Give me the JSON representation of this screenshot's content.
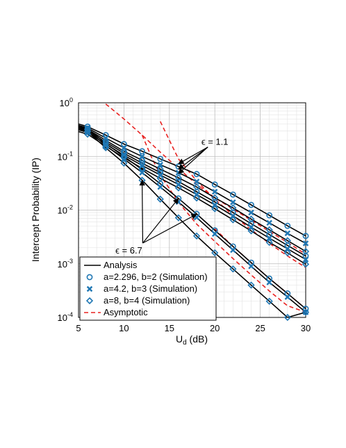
{
  "chart_data": {
    "type": "line",
    "xlabel_main": "U",
    "xlabel_sub": "d",
    "xlabel_unit": " (dB)",
    "ylabel": "Intercept Probability (IP)",
    "xlim": [
      5,
      30
    ],
    "ylim": [
      0.0001,
      1
    ],
    "y_scale": "log",
    "grid": true,
    "x_ticks": [
      "5",
      "10",
      "15",
      "20",
      "25",
      "30"
    ],
    "y_ticks": [
      {
        "base": "10",
        "exp": "0"
      },
      {
        "base": "10",
        "exp": "-1"
      },
      {
        "base": "10",
        "exp": "-2"
      },
      {
        "base": "10",
        "exp": "-3"
      },
      {
        "base": "10",
        "exp": "-4"
      }
    ],
    "legend": {
      "position": "bottom-left",
      "entries": [
        {
          "label": "Analysis",
          "style": "line",
          "color": "#000000"
        },
        {
          "label": "a=2.296, b=2 (Simulation)",
          "style": "circle",
          "color": "#1f77b4"
        },
        {
          "label": "a=4.2, b=3 (Simulation)",
          "style": "x",
          "color": "#1f77b4"
        },
        {
          "label": "a=8, b=4 (Simulation)",
          "style": "diamond",
          "color": "#1f77b4"
        },
        {
          "label": "Asymptotic",
          "style": "dashed",
          "color": "#e8201f"
        }
      ]
    },
    "annotations": [
      {
        "text": "ϵ = 1.1",
        "x": 20,
        "y": 0.19,
        "targets": [
          [
            16,
            0.073
          ],
          [
            16,
            0.058
          ],
          [
            16,
            0.048
          ]
        ]
      },
      {
        "text": "ϵ = 6.7",
        "x": 11,
        "y": 0.0018,
        "targets": [
          [
            12,
            0.036
          ],
          [
            16,
            0.0165
          ],
          [
            18,
            0.0084
          ]
        ]
      }
    ],
    "series": [
      {
        "group": "eps1.1",
        "marker": "circle",
        "x": [
          6,
          8,
          10,
          12,
          14,
          16,
          18,
          20,
          22,
          24,
          26,
          28,
          30
        ],
        "y": [
          0.36,
          0.25,
          0.17,
          0.125,
          0.09,
          0.065,
          0.047,
          0.03,
          0.0195,
          0.0125,
          0.008,
          0.0051,
          0.0033
        ]
      },
      {
        "group": "eps1.1",
        "marker": "x",
        "x": [
          6,
          8,
          10,
          12,
          14,
          16,
          18,
          20,
          22,
          24,
          26,
          28,
          30
        ],
        "y": [
          0.34,
          0.22,
          0.145,
          0.1,
          0.07,
          0.05,
          0.034,
          0.022,
          0.014,
          0.009,
          0.0058,
          0.0037,
          0.0024
        ]
      },
      {
        "group": "eps1.1",
        "marker": "diamond",
        "x": [
          6,
          8,
          10,
          12,
          14,
          16,
          18,
          20,
          22,
          24,
          26,
          28,
          30
        ],
        "y": [
          0.32,
          0.2,
          0.125,
          0.085,
          0.058,
          0.04,
          0.027,
          0.017,
          0.011,
          0.0068,
          0.0043,
          0.0027,
          0.0017
        ]
      },
      {
        "group": "eps1.1",
        "marker": "circle",
        "x": [
          6,
          8,
          10,
          12,
          14,
          16,
          18,
          20,
          22,
          24,
          26,
          28,
          30
        ],
        "y": [
          0.3,
          0.185,
          0.115,
          0.075,
          0.05,
          0.034,
          0.022,
          0.0142,
          0.009,
          0.0056,
          0.0035,
          0.0022,
          0.0014
        ]
      },
      {
        "group": "eps1.1",
        "marker": "x",
        "x": [
          6,
          8,
          10,
          12,
          14,
          16,
          18,
          20,
          22,
          24,
          26,
          28,
          30
        ],
        "y": [
          0.28,
          0.17,
          0.105,
          0.068,
          0.045,
          0.03,
          0.0195,
          0.0125,
          0.0078,
          0.0048,
          0.003,
          0.0019,
          0.0012
        ]
      },
      {
        "group": "eps1.1",
        "marker": "diamond",
        "x": [
          6,
          8,
          10,
          12,
          14,
          16,
          18,
          20,
          22,
          24,
          26,
          28,
          30
        ],
        "y": [
          0.26,
          0.155,
          0.095,
          0.06,
          0.039,
          0.026,
          0.0168,
          0.0106,
          0.0066,
          0.0041,
          0.0025,
          0.0016,
          0.00098
        ]
      },
      {
        "group": "eps6.7",
        "marker": "circle",
        "x": [
          6,
          8,
          10,
          12,
          14,
          16,
          18,
          20,
          22,
          24,
          26,
          28,
          30
        ],
        "y": [
          0.33,
          0.175,
          0.1,
          0.057,
          0.031,
          0.0165,
          0.0085,
          0.0042,
          0.0021,
          0.00105,
          0.00053,
          0.00028,
          0.000145
        ]
      },
      {
        "group": "eps6.7",
        "marker": "x",
        "x": [
          6,
          8,
          10,
          12,
          14,
          16,
          18,
          20,
          22,
          24,
          26,
          28,
          30
        ],
        "y": [
          0.31,
          0.16,
          0.09,
          0.05,
          0.027,
          0.0142,
          0.0073,
          0.0036,
          0.0018,
          0.0009,
          0.00045,
          0.00024,
          0.000125
        ]
      },
      {
        "group": "eps6.7",
        "marker": "diamond",
        "x": [
          6,
          8,
          10,
          12,
          14,
          16,
          18,
          20,
          22,
          24,
          26,
          28,
          30
        ],
        "y": [
          0.29,
          0.145,
          0.075,
          0.036,
          0.016,
          0.0072,
          0.0033,
          0.0016,
          0.0008,
          0.0004,
          0.0002,
          0.0001,
          0.000125
        ]
      }
    ],
    "asymptotes": [
      {
        "x": [
          8,
          10,
          12,
          14,
          16,
          18,
          20,
          22,
          24,
          26,
          28,
          30
        ],
        "y": [
          0.95,
          0.5,
          0.25,
          0.12,
          0.06,
          0.03,
          0.017,
          0.0105,
          0.0065,
          0.004,
          0.0025,
          0.0015
        ]
      },
      {
        "x": [
          14,
          15,
          16,
          18,
          20,
          22,
          24,
          26,
          28,
          30
        ],
        "y": [
          0.45,
          0.2,
          0.09,
          0.035,
          0.016,
          0.008,
          0.0043,
          0.0024,
          0.0014,
          0.00085
        ]
      },
      {
        "x": [
          12,
          13,
          14,
          16,
          18,
          20,
          22,
          24,
          26,
          28,
          30
        ],
        "y": [
          0.25,
          0.1,
          0.045,
          0.014,
          0.0055,
          0.0026,
          0.00125,
          0.00062,
          0.00031,
          0.000165,
          0.000125
        ]
      },
      {
        "x": [
          20,
          22,
          24,
          26,
          28,
          30
        ],
        "y": [
          0.0045,
          0.0021,
          0.00105,
          0.00053,
          0.00028,
          0.000145
        ]
      }
    ]
  }
}
